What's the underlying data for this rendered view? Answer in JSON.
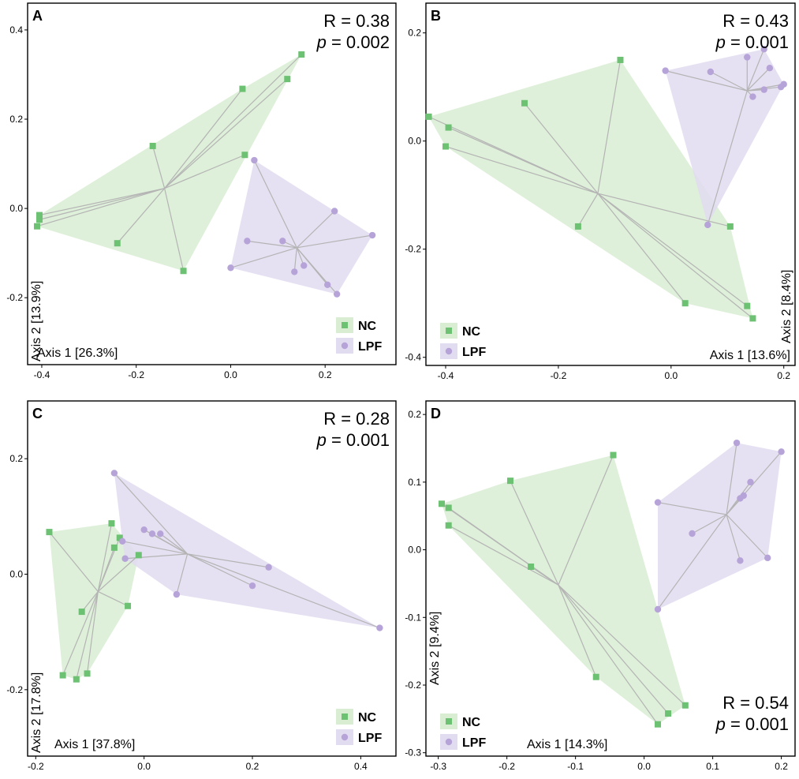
{
  "figure": {
    "colors": {
      "nc_point": "#6cc172",
      "nc_fill": "#d8edd2",
      "lpf_point": "#b6a3d8",
      "lpf_fill": "#e2dcf0",
      "spider": "#b4b4b4",
      "frame": "#000000"
    }
  },
  "chart_data": [
    {
      "panel": "A",
      "type": "scatter",
      "xlabel": "Axis 1 [26.3%]",
      "ylabel": "Axis 2 [13.9%]",
      "xlim": [
        -0.43,
        0.35
      ],
      "ylim": [
        -0.35,
        0.46
      ],
      "xticks": [
        -0.4,
        -0.2,
        0.0,
        0.2
      ],
      "xtick_labels": [
        "-0.4",
        "-0.2",
        "0.0",
        "0.2"
      ],
      "yticks": [
        -0.2,
        0.0,
        0.2,
        0.4
      ],
      "ytick_labels": [
        "-0.2",
        "0.0",
        "0.2",
        "0.4"
      ],
      "stats": {
        "r": "R = 0.38",
        "p_label": "p",
        "p_value": " = 0.002",
        "position": "top-right"
      },
      "legend_position": "bottom-right",
      "legend": [
        "NC",
        "LPF"
      ],
      "series": [
        {
          "name": "NC",
          "marker": "square",
          "centroid": [
            -0.14,
            0.045
          ],
          "points": [
            [
              0.15,
              0.345
            ],
            [
              0.12,
              0.29
            ],
            [
              0.025,
              0.268
            ],
            [
              0.03,
              0.12
            ],
            [
              -0.165,
              0.14
            ],
            [
              -0.405,
              -0.015
            ],
            [
              -0.405,
              -0.025
            ],
            [
              -0.41,
              -0.04
            ],
            [
              -0.24,
              -0.078
            ],
            [
              -0.1,
              -0.14
            ]
          ]
        },
        {
          "name": "LPF",
          "marker": "circle",
          "centroid": [
            0.14,
            -0.088
          ],
          "points": [
            [
              0.05,
              0.108
            ],
            [
              0.22,
              -0.006
            ],
            [
              0.3,
              -0.06
            ],
            [
              0.035,
              -0.073
            ],
            [
              0.11,
              -0.073
            ],
            [
              0.155,
              -0.128
            ],
            [
              0.135,
              -0.142
            ],
            [
              0.0,
              -0.133
            ],
            [
              0.205,
              -0.171
            ],
            [
              0.225,
              -0.192
            ]
          ]
        }
      ]
    },
    {
      "panel": "B",
      "type": "scatter",
      "xlabel": "Axis 1 [13.6%]",
      "ylabel": "Axis 2 [8.4%]",
      "xlim": [
        -0.435,
        0.22
      ],
      "ylim": [
        -0.415,
        0.255
      ],
      "xticks": [
        -0.4,
        -0.2,
        0.0,
        0.2
      ],
      "xtick_labels": [
        "-0.4",
        "-0.2",
        "0.0",
        "0.2"
      ],
      "yticks": [
        -0.4,
        -0.2,
        0.0,
        0.2
      ],
      "ytick_labels": [
        "-0.4",
        "-0.2",
        "0.0",
        "0.2"
      ],
      "stats": {
        "r": "R = 0.43",
        "p_label": "p",
        "p_value": " = 0.001",
        "position": "top-right"
      },
      "legend_position": "bottom-left",
      "legend": [
        "NC",
        "LPF"
      ],
      "series": [
        {
          "name": "NC",
          "marker": "square",
          "centroid": [
            -0.13,
            -0.097
          ],
          "points": [
            [
              -0.09,
              0.15
            ],
            [
              -0.26,
              0.07
            ],
            [
              -0.43,
              0.045
            ],
            [
              -0.395,
              0.025
            ],
            [
              -0.4,
              -0.01
            ],
            [
              -0.165,
              -0.158
            ],
            [
              0.105,
              -0.158
            ],
            [
              0.025,
              -0.3
            ],
            [
              0.135,
              -0.305
            ],
            [
              0.145,
              -0.328
            ]
          ]
        },
        {
          "name": "LPF",
          "marker": "circle",
          "centroid": [
            0.135,
            0.093
          ],
          "points": [
            [
              -0.01,
              0.13
            ],
            [
              0.07,
              0.128
            ],
            [
              0.165,
              0.17
            ],
            [
              0.135,
              0.155
            ],
            [
              0.175,
              0.135
            ],
            [
              0.2,
              0.105
            ],
            [
              0.195,
              0.1
            ],
            [
              0.165,
              0.095
            ],
            [
              0.145,
              0.082
            ],
            [
              0.065,
              -0.155
            ]
          ]
        }
      ]
    },
    {
      "panel": "C",
      "type": "scatter",
      "xlabel": "Axis 1 [37.8%]",
      "ylabel": "Axis 2 [17.8%]",
      "xlim": [
        -0.215,
        0.465
      ],
      "ylim": [
        -0.315,
        0.3
      ],
      "xticks": [
        -0.2,
        0.0,
        0.2,
        0.4
      ],
      "xtick_labels": [
        "-0.2",
        "0.0",
        "0.2",
        "0.4"
      ],
      "yticks": [
        -0.2,
        0.0,
        0.2
      ],
      "ytick_labels": [
        "-0.2",
        "0.0",
        "0.2"
      ],
      "stats": {
        "r": "R = 0.28",
        "p_label": "p",
        "p_value": " = 0.001",
        "position": "top-right"
      },
      "legend_position": "bottom-right",
      "legend": [
        "NC",
        "LPF"
      ],
      "series": [
        {
          "name": "NC",
          "marker": "square",
          "centroid": [
            -0.085,
            -0.03
          ],
          "points": [
            [
              -0.175,
              0.073
            ],
            [
              -0.06,
              0.088
            ],
            [
              -0.045,
              0.063
            ],
            [
              -0.055,
              0.046
            ],
            [
              -0.01,
              0.033
            ],
            [
              -0.115,
              -0.065
            ],
            [
              -0.03,
              -0.055
            ],
            [
              -0.15,
              -0.175
            ],
            [
              -0.105,
              -0.172
            ],
            [
              -0.125,
              -0.182
            ]
          ]
        },
        {
          "name": "LPF",
          "marker": "circle",
          "centroid": [
            0.08,
            0.035
          ],
          "points": [
            [
              -0.055,
              0.175
            ],
            [
              0.0,
              0.077
            ],
            [
              0.015,
              0.07
            ],
            [
              0.03,
              0.07
            ],
            [
              -0.04,
              0.057
            ],
            [
              -0.035,
              0.027
            ],
            [
              0.23,
              0.012
            ],
            [
              0.2,
              -0.02
            ],
            [
              0.06,
              -0.035
            ],
            [
              0.435,
              -0.093
            ]
          ]
        }
      ]
    },
    {
      "panel": "D",
      "type": "scatter",
      "xlabel": "Axis 1 [14.3%]",
      "ylabel": "Axis 2 [9.4%]",
      "xlim": [
        -0.318,
        0.22
      ],
      "ylim": [
        -0.305,
        0.22
      ],
      "xticks": [
        -0.3,
        -0.2,
        -0.1,
        0.0,
        0.1,
        0.2
      ],
      "xtick_labels": [
        "-0.3",
        "-0.2",
        "-0.1",
        "0.0",
        "0.1",
        "0.2"
      ],
      "yticks": [
        -0.3,
        -0.2,
        -0.1,
        0.0,
        0.1,
        0.2
      ],
      "ytick_labels": [
        "-0.3",
        "-0.2",
        "-0.1",
        "0.0",
        "0.1",
        "0.2"
      ],
      "stats": {
        "r": "R = 0.54",
        "p_label": "p",
        "p_value": " = 0.001",
        "position": "bottom-right"
      },
      "legend_position": "bottom-left",
      "legend": [
        "NC",
        "LPF"
      ],
      "series": [
        {
          "name": "NC",
          "marker": "square",
          "centroid": [
            -0.125,
            -0.052
          ],
          "points": [
            [
              -0.045,
              0.14
            ],
            [
              -0.195,
              0.102
            ],
            [
              -0.295,
              0.068
            ],
            [
              -0.285,
              0.062
            ],
            [
              -0.285,
              0.036
            ],
            [
              -0.165,
              -0.025
            ],
            [
              -0.07,
              -0.188
            ],
            [
              0.06,
              -0.23
            ],
            [
              0.035,
              -0.242
            ],
            [
              0.02,
              -0.258
            ]
          ]
        },
        {
          "name": "LPF",
          "marker": "circle",
          "centroid": [
            0.12,
            0.052
          ],
          "points": [
            [
              0.135,
              0.158
            ],
            [
              0.2,
              0.145
            ],
            [
              0.155,
              0.1
            ],
            [
              0.145,
              0.08
            ],
            [
              0.14,
              0.076
            ],
            [
              0.02,
              0.07
            ],
            [
              0.07,
              0.024
            ],
            [
              0.18,
              -0.012
            ],
            [
              0.14,
              -0.016
            ],
            [
              0.02,
              -0.088
            ]
          ]
        }
      ]
    }
  ]
}
